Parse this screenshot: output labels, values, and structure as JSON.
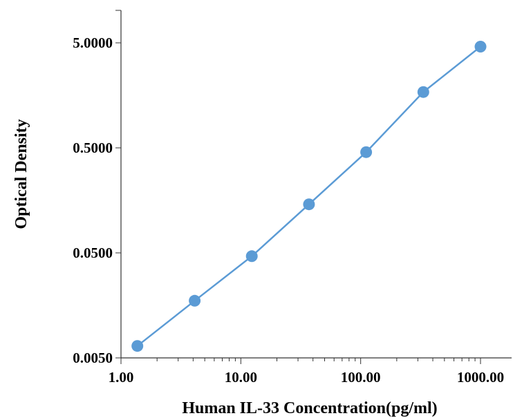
{
  "chart_data": {
    "type": "scatter",
    "title": "",
    "xlabel": "Human IL-33 Concentration(pg/ml)",
    "ylabel": "Optical Density",
    "x_scale": "log",
    "y_scale": "log",
    "xlim": [
      1,
      1000
    ],
    "ylim": [
      0.005,
      5
    ],
    "x_ticks": [
      "1.00",
      "10.00",
      "100.00",
      "1000.00"
    ],
    "y_ticks": [
      "0.0050",
      "0.0500",
      "0.5000",
      "5.0000"
    ],
    "grid": false,
    "legend": "none",
    "series": [
      {
        "x": [
          1.37,
          4.12,
          12.35,
          37.04,
          111.11,
          333.33,
          1000
        ],
        "y": [
          0.0065,
          0.0175,
          0.0465,
          0.145,
          0.455,
          1.7,
          4.6
        ],
        "color": "#5b9bd5",
        "trendline": true
      }
    ]
  }
}
